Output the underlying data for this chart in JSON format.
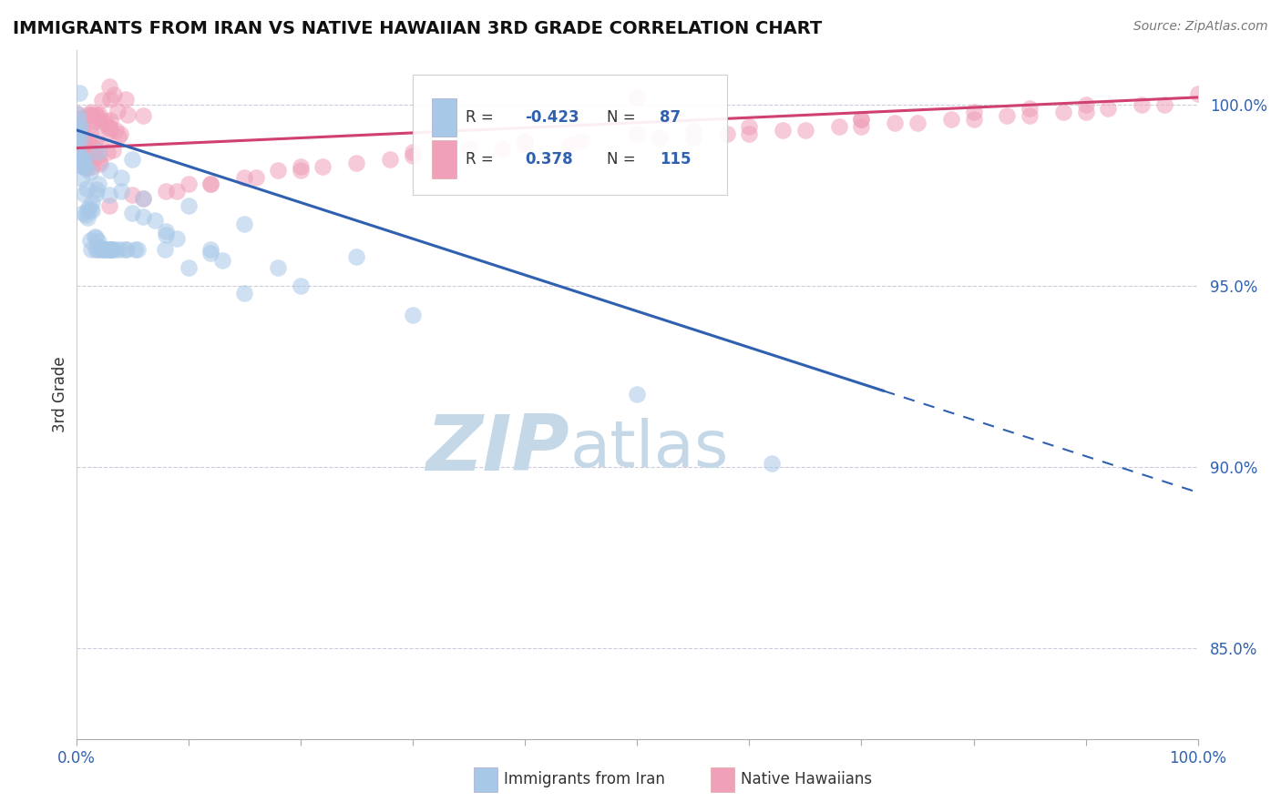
{
  "title": "IMMIGRANTS FROM IRAN VS NATIVE HAWAIIAN 3RD GRADE CORRELATION CHART",
  "source_text": "Source: ZipAtlas.com",
  "ylabel": "3rd Grade",
  "y_ticks": [
    0.85,
    0.9,
    0.95,
    1.0
  ],
  "y_tick_labels": [
    "85.0%",
    "90.0%",
    "95.0%",
    "100.0%"
  ],
  "xmin": 0.0,
  "xmax": 1.0,
  "ymin": 0.825,
  "ymax": 1.015,
  "color_blue": "#a8c8e8",
  "color_pink": "#f0a0b8",
  "color_blue_line": "#3060b0",
  "color_pink_line": "#d04070",
  "color_dashed_grid": "#ccccdd",
  "blue_line_x0": 0.0,
  "blue_line_y0": 0.993,
  "blue_line_x_solid_end": 0.72,
  "blue_line_y_solid_end": 0.921,
  "blue_line_x1": 1.0,
  "blue_line_y1": 0.893,
  "pink_line_x0": 0.0,
  "pink_line_y0": 0.988,
  "pink_line_x1": 1.0,
  "pink_line_y1": 1.002,
  "scatter_size": 180,
  "scatter_alpha": 0.55,
  "watermark_zip_color": "#c5d8e8",
  "watermark_atlas_color": "#c5d8e8"
}
